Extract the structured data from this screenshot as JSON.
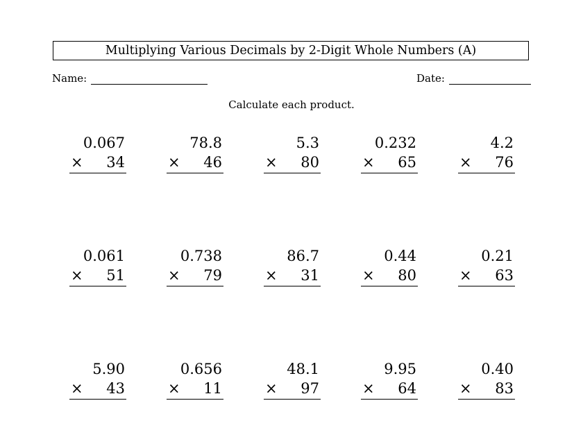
{
  "worksheet": {
    "title": "Multiplying Various Decimals by 2-Digit Whole Numbers (A)",
    "name_label": "Name:",
    "date_label": "Date:",
    "instructions": "Calculate each product.",
    "operator": "×"
  },
  "problems": [
    {
      "top": "0.067",
      "bottom": "34"
    },
    {
      "top": "78.8",
      "bottom": "46"
    },
    {
      "top": "5.3",
      "bottom": "80"
    },
    {
      "top": "0.232",
      "bottom": "65"
    },
    {
      "top": "4.2",
      "bottom": "76"
    },
    {
      "top": "0.061",
      "bottom": "51"
    },
    {
      "top": "0.738",
      "bottom": "79"
    },
    {
      "top": "86.7",
      "bottom": "31"
    },
    {
      "top": "0.44",
      "bottom": "80"
    },
    {
      "top": "0.21",
      "bottom": "63"
    },
    {
      "top": "5.90",
      "bottom": "43"
    },
    {
      "top": "0.656",
      "bottom": "11"
    },
    {
      "top": "48.1",
      "bottom": "97"
    },
    {
      "top": "9.95",
      "bottom": "64"
    },
    {
      "top": "0.40",
      "bottom": "83"
    }
  ]
}
